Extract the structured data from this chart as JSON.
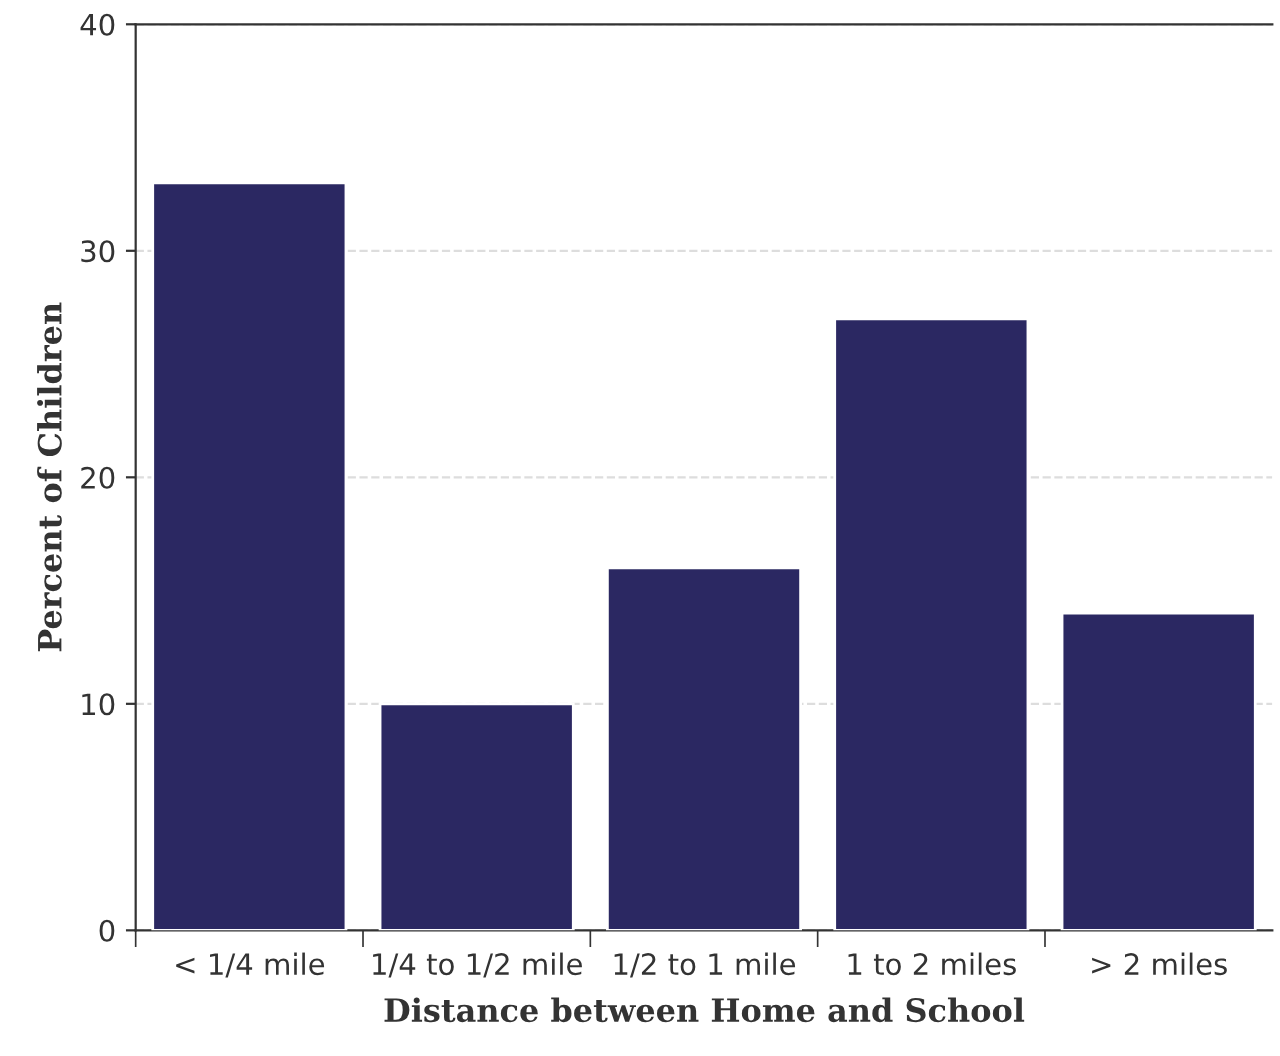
{
  "chart_data": {
    "type": "bar",
    "categories": [
      "< 1/4 mile",
      "1/4 to 1/2 mile",
      "1/2 to 1 mile",
      "1 to 2 miles",
      "> 2 miles"
    ],
    "values": [
      33,
      10,
      16,
      27,
      14
    ],
    "color": "#2b2862",
    "xlabel": "Distance between Home and School",
    "ylabel": "Percent of Children",
    "ylim": [
      0,
      40
    ],
    "yticks": [
      0,
      10,
      20,
      30,
      40
    ],
    "grid": "y"
  }
}
